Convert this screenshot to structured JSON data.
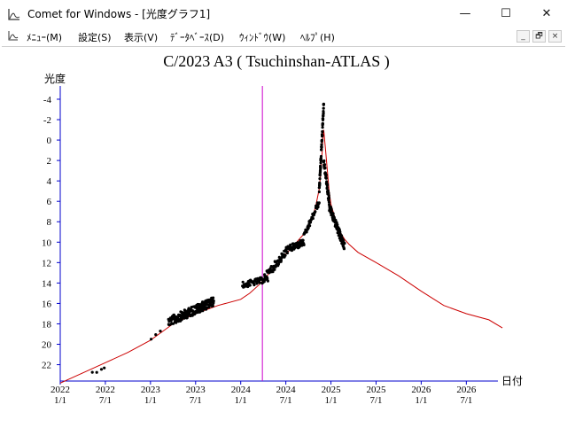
{
  "window": {
    "title": "Comet for Windows - [光度グラフ1]",
    "minimize_glyph": "—",
    "maximize_glyph": "☐",
    "close_glyph": "✕"
  },
  "menu": {
    "items": [
      "ﾒﾆｭｰ(M)",
      "設定(S)",
      "表示(V)",
      "ﾃﾞｰﾀﾍﾞｰｽ(D)",
      "ｳｨﾝﾄﾞｳ(W)",
      "ﾍﾙﾌﾟ(H)"
    ],
    "mdi_buttons": [
      "_",
      "🗗",
      "×"
    ]
  },
  "chart_data": {
    "type": "scatter",
    "title": "C/2023 A3 ( Tsuchinshan-ATLAS )",
    "ylabel": "光度",
    "xlabel": "日付",
    "ylim": [
      23.6,
      -5.3
    ],
    "y_inverted": true,
    "y_ticks": [
      -4,
      -2,
      0,
      2,
      4,
      6,
      8,
      10,
      12,
      14,
      16,
      18,
      20,
      22
    ],
    "x_ticks": [
      {
        "t": 2022.0,
        "top": "2022",
        "bottom": "1/1"
      },
      {
        "t": 2022.5,
        "top": "2022",
        "bottom": "7/1"
      },
      {
        "t": 2023.0,
        "top": "2023",
        "bottom": "1/1"
      },
      {
        "t": 2023.5,
        "top": "2023",
        "bottom": "7/1"
      },
      {
        "t": 2024.0,
        "top": "2024",
        "bottom": "1/1"
      },
      {
        "t": 2024.5,
        "top": "2024",
        "bottom": "7/1"
      },
      {
        "t": 2025.0,
        "top": "2025",
        "bottom": "1/1"
      },
      {
        "t": 2025.5,
        "top": "2025",
        "bottom": "7/1"
      },
      {
        "t": 2026.0,
        "top": "2026",
        "bottom": "1/1"
      },
      {
        "t": 2026.5,
        "top": "2026",
        "bottom": "7/1"
      }
    ],
    "xlim": [
      2022.0,
      2026.85
    ],
    "perihelion_marker": 2024.24,
    "curve_color": "#cc0000",
    "marker_line_color": "#cc00cc",
    "axis_color": "#0000cc",
    "point_color": "#000000",
    "model_curve": [
      [
        2022.0,
        23.8
      ],
      [
        2022.25,
        22.8
      ],
      [
        2022.5,
        21.8
      ],
      [
        2022.75,
        20.8
      ],
      [
        2023.0,
        19.6
      ],
      [
        2023.25,
        18.0
      ],
      [
        2023.5,
        17.0
      ],
      [
        2023.75,
        16.2
      ],
      [
        2024.0,
        15.6
      ],
      [
        2024.1,
        15.0
      ],
      [
        2024.2,
        14.2
      ],
      [
        2024.3,
        13.2
      ],
      [
        2024.4,
        12.2
      ],
      [
        2024.5,
        11.2
      ],
      [
        2024.6,
        10.2
      ],
      [
        2024.7,
        9.2
      ],
      [
        2024.78,
        8.0
      ],
      [
        2024.83,
        6.5
      ],
      [
        2024.87,
        4.8
      ],
      [
        2024.89,
        3.0
      ],
      [
        2024.9,
        1.5
      ],
      [
        2024.91,
        0.0
      ],
      [
        2024.92,
        -1.0
      ],
      [
        2024.94,
        1.0
      ],
      [
        2024.96,
        3.0
      ],
      [
        2024.98,
        5.0
      ],
      [
        2025.0,
        6.3
      ],
      [
        2025.05,
        7.8
      ],
      [
        2025.1,
        9.0
      ],
      [
        2025.15,
        9.7
      ],
      [
        2025.2,
        10.2
      ],
      [
        2025.3,
        11.0
      ],
      [
        2025.5,
        12.0
      ],
      [
        2025.75,
        13.3
      ],
      [
        2026.0,
        14.8
      ],
      [
        2026.25,
        16.2
      ],
      [
        2026.5,
        17.0
      ],
      [
        2026.75,
        17.6
      ],
      [
        2026.9,
        18.4
      ]
    ],
    "observation_groups": [
      {
        "t_start": 2022.35,
        "t_end": 2022.5,
        "mag_start": 22.8,
        "mag_end": 22.2,
        "spread": 0.3,
        "count": 4
      },
      {
        "t_start": 2023.0,
        "t_end": 2023.1,
        "mag_start": 19.4,
        "mag_end": 18.8,
        "spread": 0.3,
        "count": 3
      },
      {
        "t_start": 2023.2,
        "t_end": 2023.7,
        "mag_start": 17.8,
        "mag_end": 15.8,
        "spread": 0.9,
        "count": 200
      },
      {
        "t_start": 2024.02,
        "t_end": 2024.3,
        "mag_start": 14.2,
        "mag_end": 13.6,
        "spread": 0.6,
        "count": 60
      },
      {
        "t_start": 2024.25,
        "t_end": 2024.5,
        "mag_start": 13.6,
        "mag_end": 11.0,
        "spread": 0.8,
        "count": 60
      },
      {
        "t_start": 2024.5,
        "t_end": 2024.7,
        "mag_start": 10.8,
        "mag_end": 10.0,
        "spread": 0.7,
        "count": 60
      },
      {
        "t_start": 2024.7,
        "t_end": 2024.87,
        "mag_start": 9.5,
        "mag_end": 6.0,
        "spread": 0.6,
        "count": 40
      },
      {
        "t_start": 2024.87,
        "t_end": 2024.92,
        "mag_start": 5.0,
        "mag_end": -3.5,
        "spread": 0.7,
        "count": 60
      },
      {
        "t_start": 2024.92,
        "t_end": 2024.98,
        "mag_start": 2.0,
        "mag_end": 6.0,
        "spread": 0.8,
        "count": 50
      },
      {
        "t_start": 2024.98,
        "t_end": 2025.15,
        "mag_start": 6.5,
        "mag_end": 10.5,
        "spread": 0.8,
        "count": 90
      }
    ]
  }
}
